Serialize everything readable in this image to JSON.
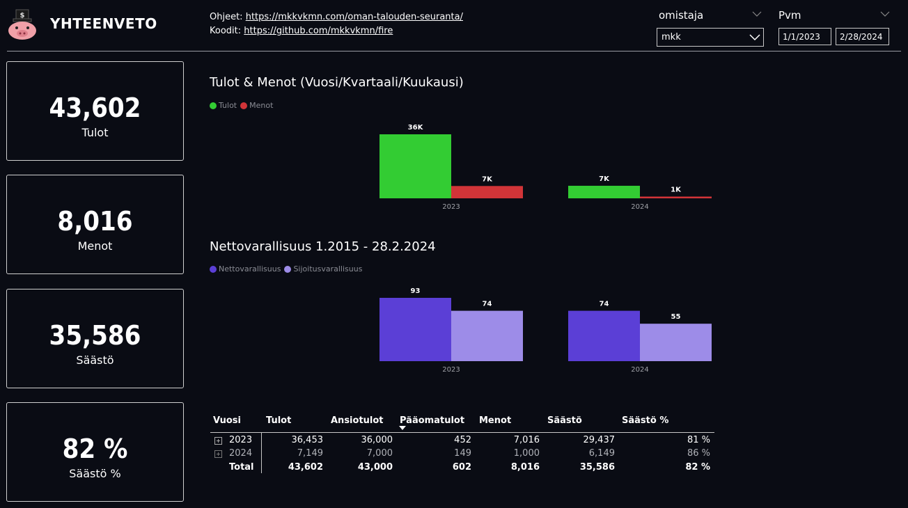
{
  "header": {
    "title": "YHTEENVETO",
    "links": [
      {
        "label": "Ohjeet:",
        "url": "https://mkkvkmn.com/oman-talouden-seuranta/"
      },
      {
        "label": "Koodit:",
        "url": "https://github.com/mkkvkmn/fire"
      }
    ]
  },
  "filters": {
    "owner": {
      "label": "omistaja",
      "value": "mkk"
    },
    "date": {
      "label": "Pvm",
      "start": "1/1/2023",
      "end": "2/28/2024"
    }
  },
  "kpis": [
    {
      "value": "43,602",
      "label": "Tulot"
    },
    {
      "value": "8,016",
      "label": "Menot"
    },
    {
      "value": "35,586",
      "label": "Säästö"
    },
    {
      "value": "82 %",
      "label": "Säästö %"
    }
  ],
  "colors": {
    "tulot": "#33cc33",
    "menot": "#d13438",
    "netto": "#5b3fd6",
    "sijoitus": "#9d8ce8"
  },
  "chart_data": [
    {
      "type": "bar",
      "title": "Tulot & Menot (Vuosi/Kvartaali/Kuukausi)",
      "categories": [
        "2023",
        "2024"
      ],
      "series": [
        {
          "name": "Tulot",
          "color": "#33cc33",
          "values": [
            36453,
            7149
          ],
          "labels": [
            "36K",
            "7K"
          ]
        },
        {
          "name": "Menot",
          "color": "#d13438",
          "values": [
            7016,
            1000
          ],
          "labels": [
            "7K",
            "1K"
          ]
        }
      ],
      "ylim": [
        0,
        36453
      ]
    },
    {
      "type": "bar",
      "title": "Nettovarallisuus 1.2015 - 28.2.2024",
      "categories": [
        "2023",
        "2024"
      ],
      "series": [
        {
          "name": "Nettovarallisuus",
          "color": "#5b3fd6",
          "values": [
            93,
            74
          ],
          "labels": [
            "93",
            "74"
          ]
        },
        {
          "name": "Sijoitusvarallisuus",
          "color": "#9d8ce8",
          "values": [
            74,
            55
          ],
          "labels": [
            "74",
            "55"
          ]
        }
      ],
      "ylim": [
        0,
        93
      ]
    }
  ],
  "table": {
    "headers": [
      "Vuosi",
      "Tulot",
      "Ansiotulot",
      "Pääomatulot",
      "Menot",
      "Säästö",
      "Säästö %"
    ],
    "rows": [
      {
        "year": "2023",
        "tulot": "36,453",
        "ansiotulot": "36,000",
        "paaomatulot": "452",
        "menot": "7,016",
        "saasto": "29,437",
        "saastopct": "81 %"
      },
      {
        "year": "2024",
        "tulot": "7,149",
        "ansiotulot": "7,000",
        "paaomatulot": "149",
        "menot": "1,000",
        "saasto": "6,149",
        "saastopct": "86 %"
      }
    ],
    "total": {
      "label": "Total",
      "tulot": "43,602",
      "ansiotulot": "43,000",
      "paaomatulot": "602",
      "menot": "8,016",
      "saasto": "35,586",
      "saastopct": "82 %"
    }
  }
}
